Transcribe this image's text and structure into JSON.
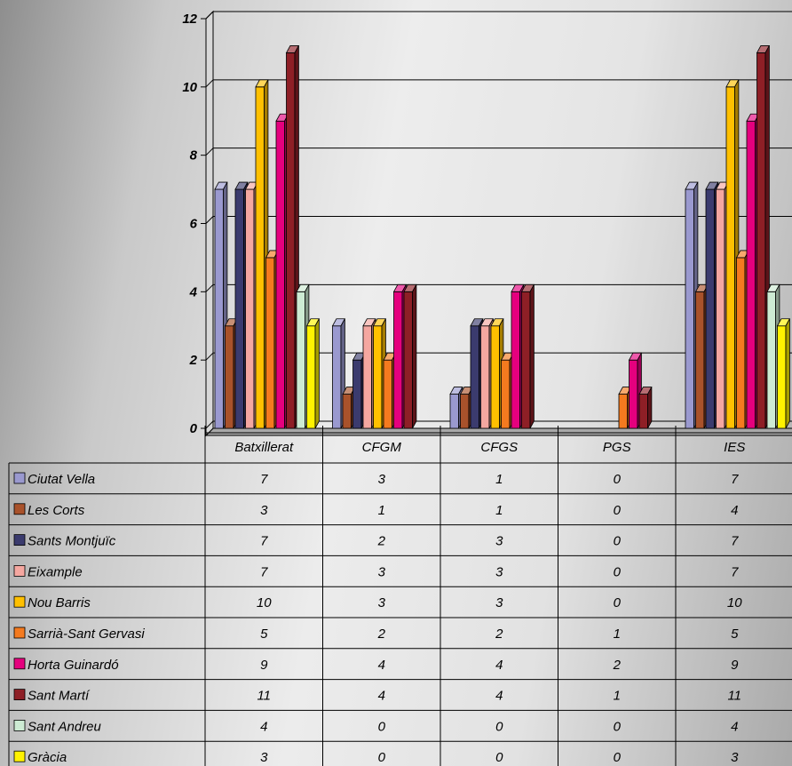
{
  "chart_data": {
    "type": "bar",
    "categories": [
      "Batxillerat",
      "CFGM",
      "CFGS",
      "PGS",
      "IES"
    ],
    "ylim": [
      0,
      12
    ],
    "yticks": [
      "0",
      "2",
      "4",
      "6",
      "8",
      "10",
      "12"
    ],
    "grid": true,
    "legend": "table",
    "series": [
      {
        "name": "Ciutat Vella",
        "color": "#9a99cf",
        "values": [
          7,
          3,
          1,
          0,
          7
        ]
      },
      {
        "name": "Les Corts",
        "color": "#a9522b",
        "values": [
          3,
          1,
          1,
          0,
          4
        ]
      },
      {
        "name": "Sants Montjuïc",
        "color": "#3b3b6e",
        "values": [
          7,
          2,
          3,
          0,
          7
        ]
      },
      {
        "name": "Eixample",
        "color": "#f5a7a0",
        "values": [
          7,
          3,
          3,
          0,
          7
        ]
      },
      {
        "name": "Nou Barris",
        "color": "#ffc000",
        "values": [
          10,
          3,
          3,
          0,
          10
        ]
      },
      {
        "name": "Sarrià-Sant Gervasi",
        "color": "#f47a1f",
        "values": [
          5,
          2,
          2,
          1,
          5
        ]
      },
      {
        "name": "Horta Guinardó",
        "color": "#e5007e",
        "values": [
          9,
          4,
          4,
          2,
          9
        ]
      },
      {
        "name": "Sant Martí",
        "color": "#8e1f26",
        "values": [
          11,
          4,
          4,
          1,
          11
        ]
      },
      {
        "name": "Sant Andreu",
        "color": "#cdebd3",
        "values": [
          4,
          0,
          0,
          0,
          4
        ]
      },
      {
        "name": "Gràcia",
        "color": "#fff200",
        "values": [
          3,
          0,
          0,
          0,
          3
        ]
      }
    ]
  }
}
